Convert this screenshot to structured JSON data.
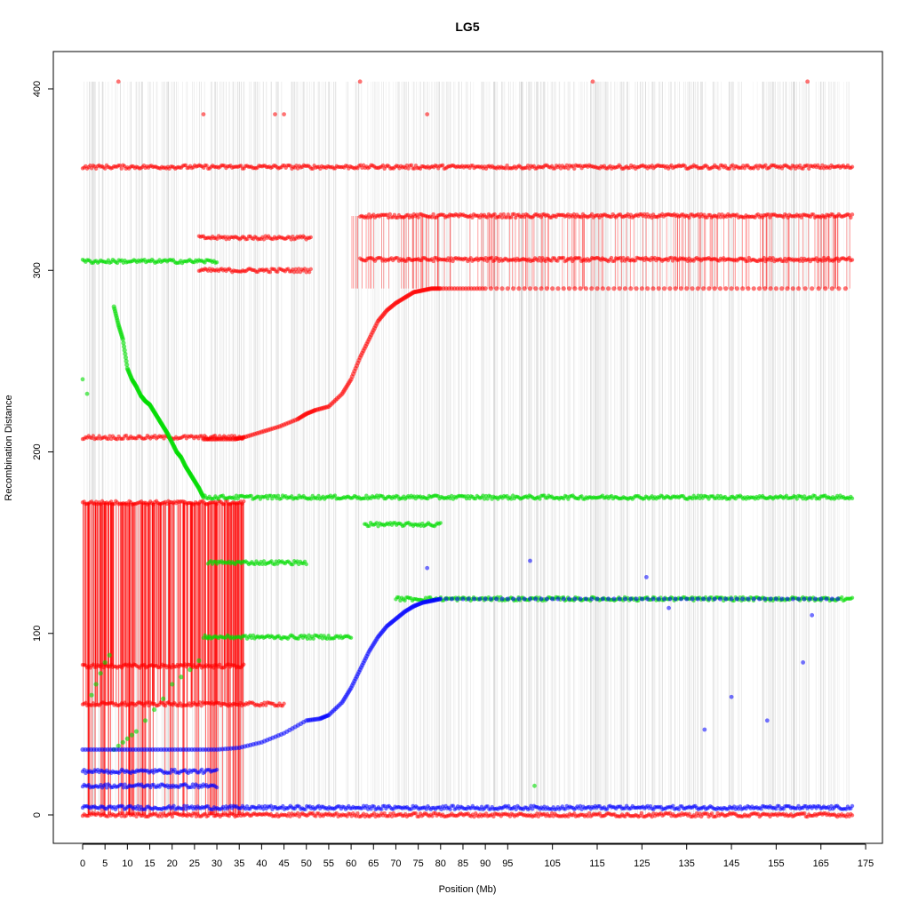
{
  "chart_data": {
    "type": "scatter",
    "title": "LG5",
    "xlabel": "Position (Mb)",
    "ylabel": "Recombination Distance",
    "xlim": [
      -7,
      180
    ],
    "ylim": [
      -15,
      420
    ],
    "x_ticks": [
      0,
      5,
      10,
      15,
      20,
      25,
      30,
      35,
      40,
      45,
      50,
      55,
      60,
      65,
      70,
      75,
      80,
      85,
      90,
      95,
      105,
      115,
      125,
      135,
      145,
      155,
      165,
      175
    ],
    "y_ticks": [
      0,
      100,
      200,
      300,
      400
    ],
    "grid": false,
    "background_marks": "dense vertical gray lines spanning 0-172 Mb from 0 to 404",
    "colors": {
      "red": "#ff0000",
      "green": "#00dd00",
      "blue": "#0000ff",
      "gray": "#bbbbbb"
    },
    "series": [
      {
        "color": "red",
        "main_curve": {
          "x": [
            27,
            30,
            34,
            36,
            40,
            44,
            48,
            50,
            52,
            55,
            58,
            60,
            62,
            64,
            66,
            68,
            70,
            72,
            74,
            76,
            78,
            80,
            85,
            90,
            100,
            110,
            120,
            130,
            140,
            150,
            160,
            172
          ],
          "y": [
            207,
            207,
            207,
            208,
            211,
            214,
            218,
            221,
            223,
            225,
            232,
            240,
            252,
            262,
            272,
            278,
            282,
            285,
            288,
            289,
            290,
            290,
            290,
            290,
            290,
            290,
            290,
            290,
            290,
            290,
            290,
            290
          ]
        },
        "horizontal_bands": [
          {
            "y": 357,
            "x_range": [
              0,
              172
            ]
          },
          {
            "y": 330,
            "x_range": [
              62,
              172
            ]
          },
          {
            "y": 306,
            "x_range": [
              62,
              172
            ]
          },
          {
            "y": 318,
            "x_range": [
              26,
              51
            ]
          },
          {
            "y": 300,
            "x_range": [
              26,
              51
            ]
          },
          {
            "y": 208,
            "x_range": [
              0,
              36
            ]
          },
          {
            "y": 172,
            "x_range": [
              0,
              36
            ]
          },
          {
            "y": 82,
            "x_range": [
              0,
              36
            ]
          },
          {
            "y": 61,
            "x_range": [
              0,
              45
            ]
          },
          {
            "y": 0,
            "x_range": [
              0,
              172
            ]
          }
        ],
        "isolated_points": [
          [
            8,
            404
          ],
          [
            62,
            404
          ],
          [
            114,
            404
          ],
          [
            162,
            404
          ],
          [
            27,
            386
          ],
          [
            43,
            386
          ],
          [
            45,
            386
          ],
          [
            77,
            386
          ]
        ]
      },
      {
        "color": "green",
        "main_curve": {
          "x": [
            7,
            8,
            9,
            10,
            11,
            12,
            13,
            14,
            15,
            16,
            17,
            18,
            19,
            20,
            21,
            22,
            23,
            24,
            25,
            26,
            27
          ],
          "y": [
            280,
            270,
            262,
            246,
            240,
            236,
            231,
            228,
            226,
            222,
            218,
            214,
            210,
            205,
            200,
            197,
            192,
            188,
            184,
            180,
            175
          ]
        },
        "lower_curve": {
          "x": [
            2,
            3,
            4,
            5,
            6,
            7,
            8,
            9,
            10,
            11,
            12,
            14,
            16,
            18,
            20,
            22,
            24,
            26,
            28
          ],
          "y": [
            66,
            72,
            78,
            84,
            88,
            36,
            38,
            40,
            42,
            44,
            46,
            52,
            58,
            64,
            72,
            76,
            80,
            85,
            98
          ]
        },
        "horizontal_bands": [
          {
            "y": 175,
            "x_range": [
              27,
              172
            ]
          },
          {
            "y": 305,
            "x_range": [
              0,
              30
            ]
          },
          {
            "y": 160,
            "x_range": [
              63,
              80
            ]
          },
          {
            "y": 139,
            "x_range": [
              28,
              50
            ]
          },
          {
            "y": 119,
            "x_range": [
              70,
              172
            ]
          },
          {
            "y": 98,
            "x_range": [
              27,
              60
            ]
          }
        ],
        "isolated_points": [
          [
            0,
            240
          ],
          [
            1,
            232
          ],
          [
            101,
            16
          ]
        ]
      },
      {
        "color": "blue",
        "main_curve": {
          "x": [
            0,
            5,
            10,
            15,
            20,
            25,
            30,
            35,
            40,
            45,
            50,
            53,
            55,
            58,
            60,
            62,
            64,
            66,
            68,
            70,
            72,
            74,
            76,
            78,
            80,
            90,
            100,
            110,
            120,
            130,
            140,
            150,
            160,
            170
          ],
          "y": [
            36,
            36,
            36,
            36,
            36,
            36,
            36,
            37,
            40,
            45,
            52,
            53,
            55,
            62,
            70,
            80,
            90,
            98,
            104,
            108,
            112,
            115,
            117,
            118,
            119,
            119,
            119,
            119,
            119,
            119,
            119,
            119,
            119,
            119
          ]
        },
        "horizontal_bands": [
          {
            "y": 24,
            "x_range": [
              0,
              30
            ]
          },
          {
            "y": 16,
            "x_range": [
              0,
              30
            ]
          },
          {
            "y": 4,
            "x_range": [
              0,
              172
            ]
          }
        ],
        "isolated_points": [
          [
            100,
            140
          ],
          [
            77,
            136
          ],
          [
            126,
            131
          ],
          [
            131,
            114
          ],
          [
            139,
            47
          ],
          [
            153,
            52
          ],
          [
            163,
            110
          ],
          [
            161,
            84
          ],
          [
            145,
            65
          ]
        ]
      }
    ]
  }
}
